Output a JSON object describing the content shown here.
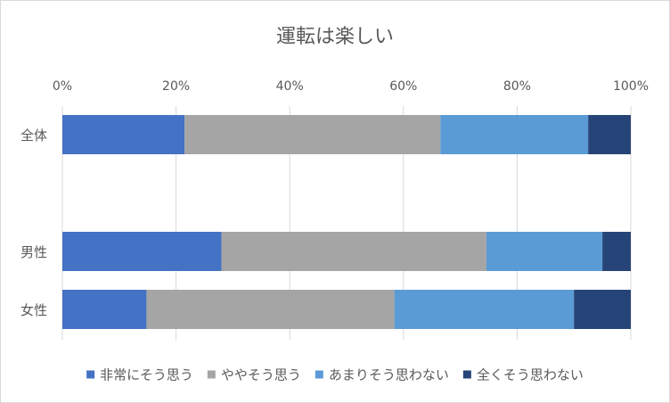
{
  "chart_data": {
    "type": "bar",
    "orientation": "horizontal",
    "stacked": "percent",
    "title": "運転は楽しい",
    "xlabel": "",
    "ylabel": "",
    "xlim": [
      0,
      100
    ],
    "x_ticks": [
      "0%",
      "20%",
      "40%",
      "60%",
      "80%",
      "100%"
    ],
    "x_axis_position": "top",
    "grid": true,
    "legend_position": "bottom",
    "categories": [
      "全体",
      "男性",
      "女性"
    ],
    "series": [
      {
        "name": "非常にそう思う",
        "color": "#4472c4",
        "values": [
          21.5,
          28.0,
          14.8
        ]
      },
      {
        "name": "ややそう思う",
        "color": "#a5a5a5",
        "values": [
          45.0,
          46.6,
          43.6
        ]
      },
      {
        "name": "あまりそう思わない",
        "color": "#5b9bd5",
        "values": [
          26.0,
          20.4,
          31.6
        ]
      },
      {
        "name": "全くそう思わない",
        "color": "#264478",
        "values": [
          7.5,
          5.0,
          10.0
        ]
      }
    ]
  }
}
